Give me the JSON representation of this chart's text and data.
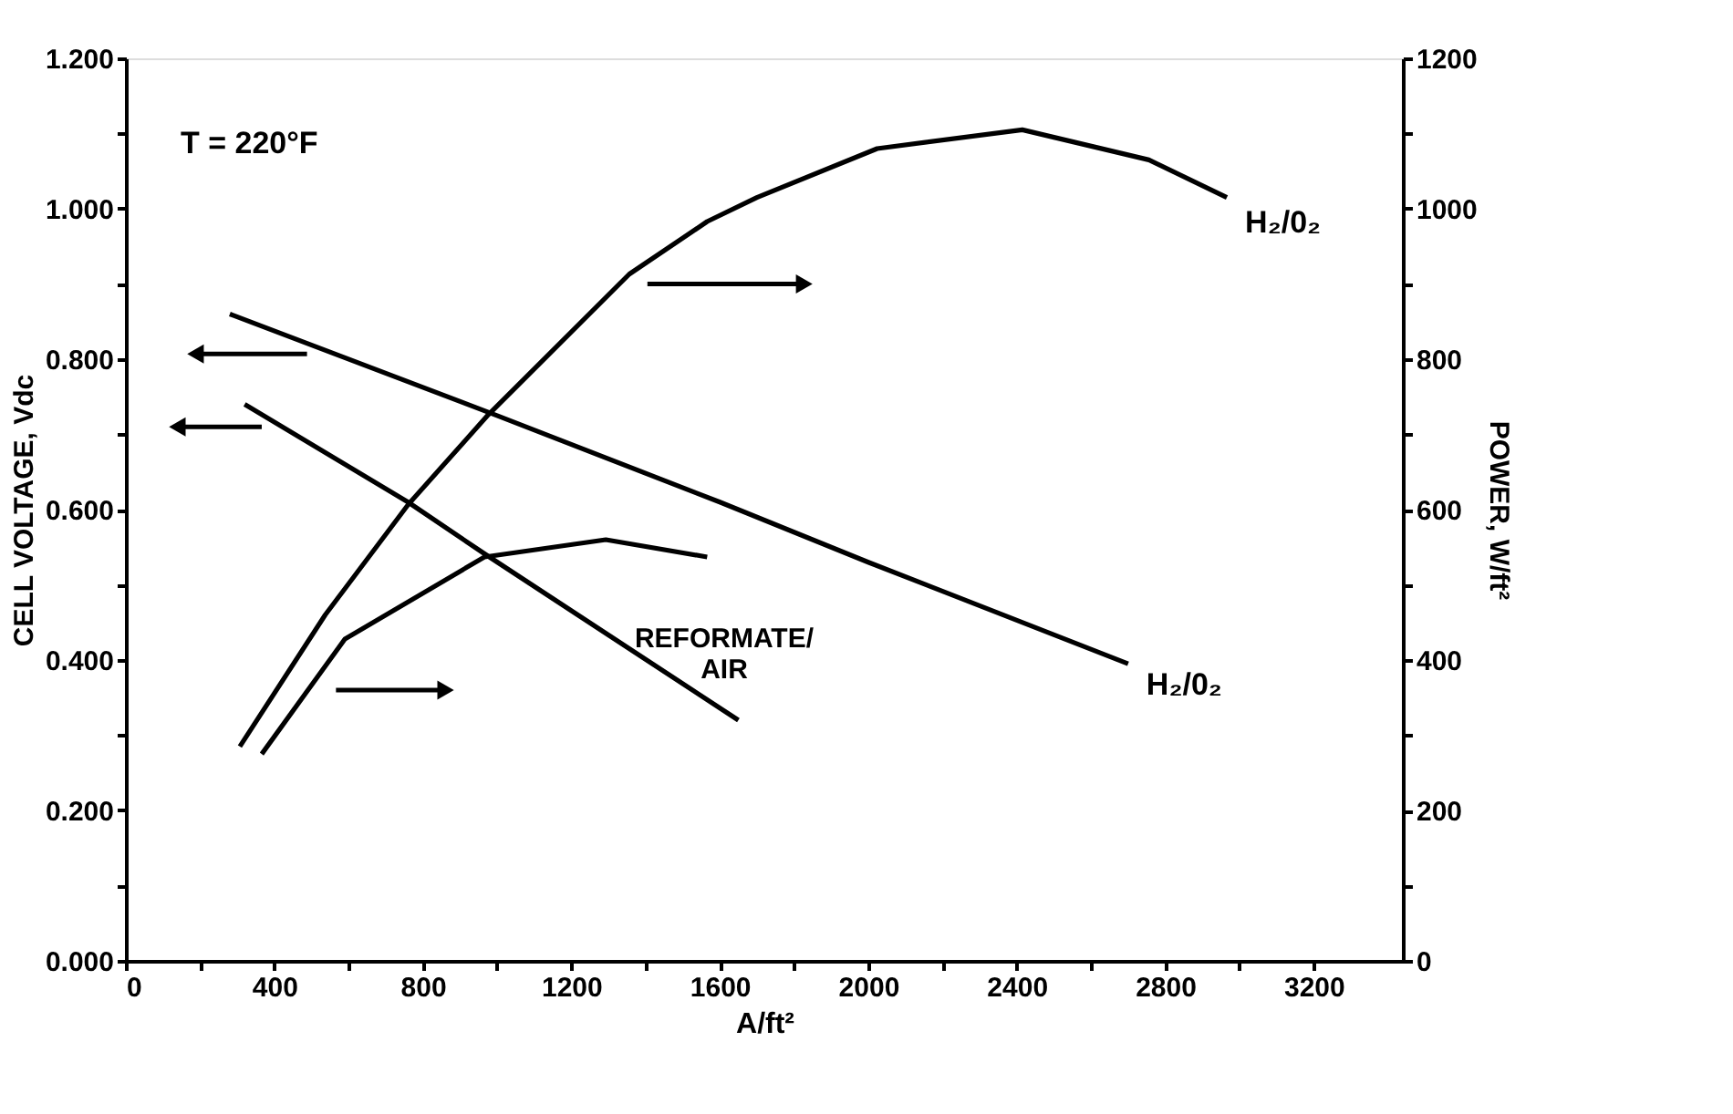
{
  "chart_data": {
    "type": "line",
    "xlabel": "A/ft²",
    "ylabel": "CELL VOLTAGE, Vdc",
    "y2label": "POWER, W/ft²",
    "xlim": [
      0,
      3440
    ],
    "xticks": [
      0,
      {
        "value": 200,
        "label": null
      },
      400,
      {
        "value": 600,
        "label": null
      },
      800,
      {
        "value": 1000,
        "label": null
      },
      1200,
      {
        "value": 1400,
        "label": null
      },
      1600,
      {
        "value": 1800,
        "label": null
      },
      2000,
      {
        "value": 2200,
        "label": null
      },
      2400,
      {
        "value": 2600,
        "label": null
      },
      2800,
      {
        "value": 3000,
        "label": null
      },
      3200
    ],
    "ylim": [
      0,
      1.2
    ],
    "yticks": [
      {
        "value": 0,
        "label": "0.000"
      },
      {
        "value": 0.1,
        "label": null
      },
      {
        "value": 0.2,
        "label": "0.200"
      },
      {
        "value": 0.3,
        "label": null
      },
      {
        "value": 0.4,
        "label": "0.400"
      },
      {
        "value": 0.5,
        "label": null
      },
      {
        "value": 0.6,
        "label": "0.600"
      },
      {
        "value": 0.7,
        "label": null
      },
      {
        "value": 0.8,
        "label": "0.800"
      },
      {
        "value": 0.9,
        "label": null
      },
      {
        "value": 1.0,
        "label": "1.000"
      },
      {
        "value": 1.1,
        "label": null
      },
      {
        "value": 1.2,
        "label": "1.200"
      }
    ],
    "y2lim": [
      0,
      1200
    ],
    "y2ticks": [
      0,
      {
        "value": 100,
        "label": null
      },
      200,
      {
        "value": 300,
        "label": null
      },
      400,
      {
        "value": 500,
        "label": null
      },
      600,
      {
        "value": 700,
        "label": null
      },
      800,
      {
        "value": 900,
        "label": null
      },
      1000,
      {
        "value": 1100,
        "label": null
      },
      1200
    ],
    "grid": false,
    "marker": "none",
    "line_style": "solid",
    "annotations": [
      "T = 220°F",
      "REFORMATE/\nAIR"
    ],
    "series": [
      {
        "name": "H₂/0₂",
        "color": "#000000",
        "x": [
          280,
          1000,
          1600,
          2000,
          2700
        ],
        "values": [
          0.86,
          0.725,
          0.61,
          0.53,
          0.395
        ]
      },
      {
        "color": "#000000",
        "x": [
          320,
          760,
          970,
          1650
        ],
        "values": [
          0.74,
          0.61,
          0.54,
          0.32
        ]
      },
      {
        "name": "H₂/0₂",
        "color": "#000000",
        "axis": "y2",
        "x": [
          307,
          537,
          761,
          976,
          1356,
          1566,
          1700,
          2024,
          2415,
          2756,
          2966
        ],
        "values": [
          285,
          460,
          607,
          726,
          913,
          983,
          1015,
          1080,
          1105,
          1065,
          1015
        ]
      },
      {
        "color": "#000000",
        "axis": "y2",
        "x": [
          366,
          590,
          966,
          1293,
          1566
        ],
        "values": [
          275,
          428,
          537,
          560,
          537
        ]
      }
    ]
  }
}
